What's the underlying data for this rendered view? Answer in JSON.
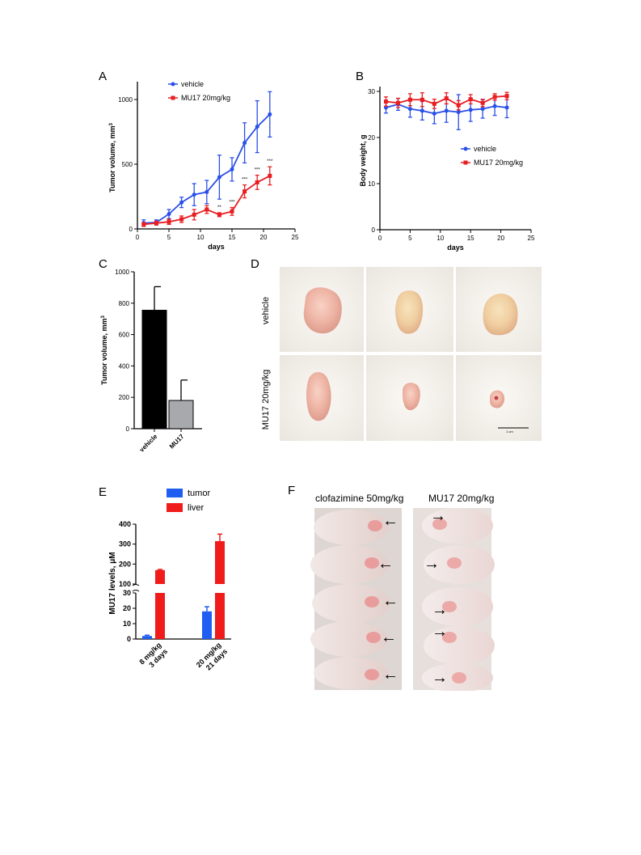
{
  "panel_labels": {
    "a": "A",
    "b": "B",
    "c": "C",
    "d": "D",
    "e": "E",
    "f": "F"
  },
  "colors": {
    "vehicle": "#2a4fe8",
    "treated": "#e81e22",
    "bar_vehicle": "#000000",
    "bar_mu17": "#a7a9ac",
    "tumor": "#1f5ef0",
    "liver": "#f01c1c"
  },
  "chart_data": [
    {
      "id": "A",
      "type": "line",
      "xlabel": "days",
      "ylabel": "Tumor volume, mm",
      "ylabel_sup": "3",
      "xlim": [
        0,
        25
      ],
      "ylim": [
        0,
        1100
      ],
      "xticks": [
        "0",
        "5",
        "10",
        "15",
        "20",
        "25"
      ],
      "yticks": [
        "0",
        "500",
        "1000"
      ],
      "legend": [
        "vehicle",
        "MU17 20mg/kg"
      ],
      "legend_position": "top",
      "series": [
        {
          "name": "vehicle",
          "x": [
            1,
            3,
            5,
            7,
            9,
            11,
            13,
            15,
            17,
            19,
            21
          ],
          "y": [
            45,
            50,
            115,
            205,
            265,
            285,
            400,
            460,
            665,
            790,
            885
          ],
          "err": [
            25,
            20,
            35,
            40,
            85,
            90,
            170,
            90,
            155,
            200,
            175
          ]
        },
        {
          "name": "MU17 20mg/kg",
          "x": [
            1,
            3,
            5,
            7,
            9,
            11,
            13,
            15,
            17,
            19,
            21
          ],
          "y": [
            35,
            45,
            55,
            75,
            110,
            150,
            110,
            135,
            290,
            360,
            410
          ],
          "err": [
            15,
            15,
            20,
            25,
            40,
            30,
            15,
            30,
            50,
            55,
            70
          ]
        }
      ],
      "annotations": [
        {
          "x": 13,
          "text": "**"
        },
        {
          "x": 15,
          "text": "***"
        },
        {
          "x": 17,
          "text": "***"
        },
        {
          "x": 19,
          "text": "***"
        },
        {
          "x": 21,
          "text": "***"
        }
      ]
    },
    {
      "id": "B",
      "type": "line",
      "xlabel": "days",
      "ylabel": "Body weight, g",
      "xlim": [
        0,
        25
      ],
      "ylim": [
        0,
        30
      ],
      "xticks": [
        "0",
        "5",
        "10",
        "15",
        "20",
        "25"
      ],
      "yticks": [
        "0",
        "10",
        "20",
        "30"
      ],
      "legend": [
        "vehicle",
        "MU17 20mg/kg"
      ],
      "legend_position": "center-right",
      "series": [
        {
          "name": "vehicle",
          "x": [
            1,
            3,
            5,
            7,
            9,
            11,
            13,
            15,
            17,
            19,
            21
          ],
          "y": [
            26.5,
            27.2,
            26.2,
            25.8,
            25.2,
            25.8,
            25.5,
            26.0,
            26.2,
            26.8,
            26.5
          ],
          "err": [
            1.2,
            1.3,
            1.8,
            2.0,
            2.2,
            2.5,
            3.8,
            2.5,
            2.0,
            2.0,
            2.2
          ]
        },
        {
          "name": "MU17 20mg/kg",
          "x": [
            1,
            3,
            5,
            7,
            9,
            11,
            13,
            15,
            17,
            19,
            21
          ],
          "y": [
            27.8,
            27.5,
            28.2,
            28.2,
            27.3,
            28.5,
            27.0,
            28.3,
            27.5,
            28.8,
            29.0
          ],
          "err": [
            1.0,
            1.0,
            1.3,
            1.5,
            1.0,
            1.2,
            1.0,
            1.0,
            0.8,
            0.7,
            0.8
          ]
        }
      ]
    },
    {
      "id": "C",
      "type": "bar",
      "ylabel": "Tumor volume, mm",
      "ylabel_sup": "3",
      "ylim": [
        0,
        1000
      ],
      "yticks": [
        "0",
        "200",
        "400",
        "600",
        "800",
        "1000"
      ],
      "categories": [
        "vehicle",
        "MU17"
      ],
      "values": [
        755,
        180
      ],
      "err": [
        150,
        130
      ]
    },
    {
      "id": "E",
      "type": "bar",
      "ylabel": "MU17 levels, ",
      "ylabel_unit": "μM",
      "y_broken_axis": {
        "lower": [
          0,
          30
        ],
        "upper": [
          100,
          400
        ]
      },
      "yticks_upper": [
        "100",
        "200",
        "300",
        "400"
      ],
      "yticks_lower": [
        "0",
        "10",
        "20",
        "30"
      ],
      "categories": [
        [
          "8 mg/kg",
          "3 days"
        ],
        [
          "20 mg/kg",
          "21 days"
        ]
      ],
      "legend": [
        "tumor",
        "liver"
      ],
      "legend_position": "top",
      "series": [
        {
          "name": "tumor",
          "values": [
            2,
            18
          ],
          "err": [
            0.5,
            3
          ]
        },
        {
          "name": "liver",
          "values": [
            170,
            315
          ],
          "err": [
            3,
            35
          ]
        }
      ]
    }
  ],
  "panel_d": {
    "row_labels": [
      "vehicle",
      "MU17 20mg/kg"
    ],
    "scale_label": "1 cm"
  },
  "panel_f": {
    "left_title": "clofazimine 50mg/kg",
    "right_title": "MU17 20mg/kg",
    "arrow_glyph": "←",
    "arrow_glyph_right": "→"
  }
}
